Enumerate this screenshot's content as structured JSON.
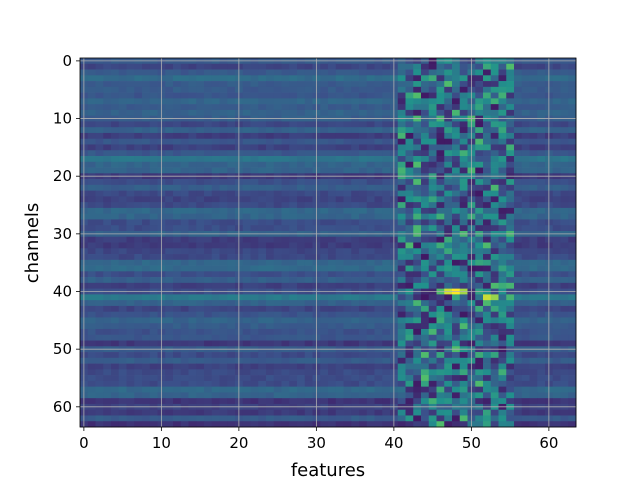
{
  "chart_data": {
    "type": "heatmap",
    "title": "",
    "xlabel": "features",
    "ylabel": "channels",
    "rows": 64,
    "cols": 64,
    "xlim": [
      -0.5,
      63.5
    ],
    "ylim": [
      63.5,
      -0.5
    ],
    "x_ticks": [
      0,
      10,
      20,
      30,
      40,
      50,
      60
    ],
    "y_ticks": [
      0,
      10,
      20,
      30,
      40,
      50,
      60
    ],
    "grid": true,
    "colormap": "viridis",
    "colormap_stops": [
      "#440154",
      "#3b528b",
      "#21918c",
      "#5ec962",
      "#fde725"
    ],
    "value_range": [
      0,
      1
    ],
    "hot_spots": [
      {
        "row": 40,
        "col": 47,
        "value": 0.93
      },
      {
        "row": 40,
        "col": 48,
        "value": 1.0
      },
      {
        "row": 40,
        "col": 49,
        "value": 0.86
      },
      {
        "row": 41,
        "col": 52,
        "value": 0.92
      },
      {
        "row": 41,
        "col": 53,
        "value": 0.84
      },
      {
        "row": 32,
        "col": 46,
        "value": 0.62
      },
      {
        "row": 33,
        "col": 47,
        "value": 0.6
      },
      {
        "row": 6,
        "col": 42,
        "value": 0.58
      },
      {
        "row": 3,
        "col": 49,
        "value": 0.52
      },
      {
        "row": 12,
        "col": 47,
        "value": 0.55
      },
      {
        "row": 35,
        "col": 52,
        "value": 0.56
      },
      {
        "row": 24,
        "col": 54,
        "value": 0.5
      },
      {
        "row": 47,
        "col": 45,
        "value": 0.66
      },
      {
        "row": 45,
        "col": 46,
        "value": 0.6
      },
      {
        "row": 59,
        "col": 44,
        "value": 0.48
      },
      {
        "row": 0,
        "col": 52,
        "value": 0.5
      }
    ]
  }
}
